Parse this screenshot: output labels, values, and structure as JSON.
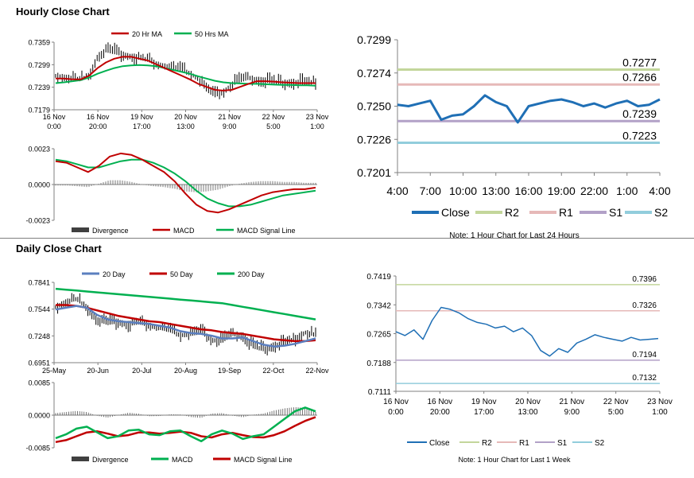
{
  "header_hourly": "Hourly Close Chart",
  "header_daily": "Daily Close Chart",
  "colors": {
    "close": "#1f6fb5",
    "ma_red": "#c00000",
    "ma_green": "#00b050",
    "r2": "#c3d69b",
    "r1": "#e6b9b8",
    "s1": "#b2a1c7",
    "s2": "#92cddc",
    "axis": "#808080",
    "bar": "#404040"
  },
  "chart_data": [
    {
      "id": "hourly_price",
      "type": "line",
      "title": "Hourly Close Chart",
      "y_ticks": [
        "0.7359",
        "0.7299",
        "0.7239",
        "0.7179"
      ],
      "ylim": [
        0.7179,
        0.7359
      ],
      "x_ticks": [
        "16 Nov\n0:00",
        "16 Nov\n20:00",
        "19 Nov\n17:00",
        "20 Nov\n13:00",
        "21 Nov\n9:00",
        "22 Nov\n5:00",
        "23 Nov\n1:00"
      ],
      "legend": [
        "20 Hr MA",
        "50 Hrs MA"
      ],
      "series": [
        {
          "name": "Close",
          "values": [
            0.7268,
            0.7265,
            0.7262,
            0.7258,
            0.727,
            0.732,
            0.7335,
            0.733,
            0.7325,
            0.732,
            0.7315,
            0.731,
            0.73,
            0.7295,
            0.729,
            0.7285,
            0.7275,
            0.726,
            0.723,
            0.7215,
            0.7225,
            0.7245,
            0.7255,
            0.7262,
            0.7258,
            0.7255,
            0.725,
            0.7248,
            0.7252,
            0.725,
            0.7248,
            0.7252
          ]
        },
        {
          "name": "20 Hr MA",
          "values": [
            0.7262,
            0.7262,
            0.726,
            0.726,
            0.727,
            0.729,
            0.7305,
            0.7315,
            0.732,
            0.732,
            0.7315,
            0.731,
            0.73,
            0.729,
            0.728,
            0.727,
            0.726,
            0.7248,
            0.724,
            0.7232,
            0.723,
            0.7232,
            0.724,
            0.7248,
            0.7255,
            0.7255,
            0.7254,
            0.7252,
            0.7251,
            0.725,
            0.725,
            0.725
          ]
        },
        {
          "name": "50 Hrs MA",
          "values": [
            0.725,
            0.7252,
            0.7255,
            0.7258,
            0.7265,
            0.7275,
            0.7283,
            0.729,
            0.7295,
            0.7297,
            0.7298,
            0.7297,
            0.7295,
            0.729,
            0.7285,
            0.728,
            0.7275,
            0.7268,
            0.7262,
            0.7256,
            0.7252,
            0.725,
            0.7249,
            0.7248,
            0.7248,
            0.7247,
            0.7246,
            0.7245,
            0.7245,
            0.7244,
            0.7244,
            0.7243
          ]
        }
      ]
    },
    {
      "id": "hourly_macd",
      "type": "line",
      "y_ticks": [
        "0.0023",
        "0.0000",
        "-0.0023"
      ],
      "ylim": [
        -0.0023,
        0.0023
      ],
      "legend": [
        "Divergence",
        "MACD",
        "MACD Signal Line"
      ],
      "series": [
        {
          "name": "MACD",
          "values": [
            0.0015,
            0.0014,
            0.0011,
            0.0008,
            0.0012,
            0.0018,
            0.002,
            0.0019,
            0.0016,
            0.0012,
            0.0008,
            0.0002,
            -0.0006,
            -0.0013,
            -0.0017,
            -0.0018,
            -0.0016,
            -0.0013,
            -0.001,
            -0.0007,
            -0.0005,
            -0.0004,
            -0.0003,
            -0.0003,
            -0.0002
          ]
        },
        {
          "name": "MACD Signal Line",
          "values": [
            0.0016,
            0.0015,
            0.0013,
            0.0011,
            0.0011,
            0.0013,
            0.0015,
            0.0016,
            0.0016,
            0.0014,
            0.0011,
            0.0007,
            0.0002,
            -0.0004,
            -0.0009,
            -0.0012,
            -0.0014,
            -0.0014,
            -0.0013,
            -0.0011,
            -0.0009,
            -0.0007,
            -0.0006,
            -0.0005,
            -0.0004
          ]
        }
      ]
    },
    {
      "id": "hourly24",
      "type": "line",
      "note": "Note: 1 Hour Chart for Last 24 Hours",
      "y_ticks": [
        "0.7299",
        "0.7274",
        "0.7250",
        "0.7226",
        "0.7201"
      ],
      "ylim": [
        0.7201,
        0.7299
      ],
      "x_ticks": [
        "4:00",
        "7:00",
        "10:00",
        "13:00",
        "16:00",
        "19:00",
        "22:00",
        "1:00",
        "4:00"
      ],
      "x": [
        0,
        1,
        2,
        3,
        4,
        5,
        6,
        7,
        8,
        9,
        10,
        11,
        12,
        13,
        14,
        15,
        16,
        17,
        18,
        19,
        20,
        21,
        22,
        23,
        24
      ],
      "legend": [
        "Close",
        "R2",
        "R1",
        "S1",
        "S2"
      ],
      "levels": [
        {
          "name": "R2",
          "value": 0.7277,
          "label": "0.7277"
        },
        {
          "name": "R1",
          "value": 0.7266,
          "label": "0.7266"
        },
        {
          "name": "S1",
          "value": 0.7239,
          "label": "0.7239"
        },
        {
          "name": "S2",
          "value": 0.7223,
          "label": "0.7223"
        }
      ],
      "series": [
        {
          "name": "Close",
          "values": [
            0.7251,
            0.725,
            0.7252,
            0.7254,
            0.724,
            0.7243,
            0.7244,
            0.725,
            0.7258,
            0.7253,
            0.725,
            0.7238,
            0.725,
            0.7252,
            0.7254,
            0.7255,
            0.7253,
            0.725,
            0.7252,
            0.7249,
            0.7252,
            0.7254,
            0.725,
            0.7251,
            0.7255
          ]
        }
      ]
    },
    {
      "id": "daily_price",
      "type": "line",
      "title": "Daily Close Chart",
      "y_ticks": [
        "0.7841",
        "0.7544",
        "0.7248",
        "0.6951"
      ],
      "ylim": [
        0.6951,
        0.7841
      ],
      "x_ticks": [
        "25-May",
        "20-Jun",
        "20-Jul",
        "20-Aug",
        "19-Sep",
        "22-Oct",
        "22-Nov"
      ],
      "legend": [
        "20 Day",
        "50 Day",
        "200 Day"
      ],
      "series": [
        {
          "name": "Close",
          "values": [
            0.756,
            0.762,
            0.765,
            0.756,
            0.742,
            0.738,
            0.74,
            0.737,
            0.739,
            0.736,
            0.733,
            0.73,
            0.725,
            0.726,
            0.728,
            0.72,
            0.718,
            0.726,
            0.725,
            0.712,
            0.709,
            0.714,
            0.715,
            0.721,
            0.728,
            0.725
          ]
        },
        {
          "name": "20 Day",
          "values": [
            0.754,
            0.756,
            0.758,
            0.756,
            0.748,
            0.743,
            0.741,
            0.74,
            0.739,
            0.738,
            0.736,
            0.734,
            0.73,
            0.728,
            0.727,
            0.725,
            0.722,
            0.722,
            0.723,
            0.719,
            0.715,
            0.713,
            0.714,
            0.716,
            0.719,
            0.722
          ]
        },
        {
          "name": "50 Day",
          "values": [
            0.759,
            0.759,
            0.758,
            0.756,
            0.753,
            0.75,
            0.747,
            0.745,
            0.743,
            0.741,
            0.74,
            0.738,
            0.736,
            0.734,
            0.732,
            0.731,
            0.729,
            0.728,
            0.727,
            0.725,
            0.723,
            0.721,
            0.72,
            0.719,
            0.719,
            0.72
          ]
        },
        {
          "name": "200 Day",
          "values": [
            0.777,
            0.776,
            0.775,
            0.774,
            0.773,
            0.772,
            0.771,
            0.77,
            0.769,
            0.768,
            0.767,
            0.766,
            0.765,
            0.764,
            0.763,
            0.762,
            0.761,
            0.759,
            0.757,
            0.755,
            0.753,
            0.751,
            0.749,
            0.747,
            0.745,
            0.743
          ]
        }
      ]
    },
    {
      "id": "daily_macd",
      "type": "line",
      "y_ticks": [
        "0.0085",
        "0.0000",
        "-0.0085"
      ],
      "ylim": [
        -0.0085,
        0.0085
      ],
      "legend": [
        "Divergence",
        "MACD",
        "MACD Signal Line"
      ],
      "series": [
        {
          "name": "MACD",
          "values": [
            -0.006,
            -0.005,
            -0.0035,
            -0.003,
            -0.0045,
            -0.006,
            -0.0055,
            -0.004,
            -0.0038,
            -0.005,
            -0.0052,
            -0.0042,
            -0.004,
            -0.0055,
            -0.0068,
            -0.005,
            -0.004,
            -0.0048,
            -0.0062,
            -0.0055,
            -0.005,
            -0.003,
            -0.001,
            0.001,
            0.002,
            0.001
          ]
        },
        {
          "name": "MACD Signal Line",
          "values": [
            -0.007,
            -0.0065,
            -0.0055,
            -0.0045,
            -0.0042,
            -0.0048,
            -0.0055,
            -0.0052,
            -0.0045,
            -0.0045,
            -0.0048,
            -0.0046,
            -0.0043,
            -0.0046,
            -0.0055,
            -0.0058,
            -0.005,
            -0.0046,
            -0.0052,
            -0.0057,
            -0.0058,
            -0.0052,
            -0.0042,
            -0.0028,
            -0.0015,
            -0.0005
          ]
        }
      ]
    },
    {
      "id": "weekly",
      "type": "line",
      "note": "Note: 1 Hour Chart for Last 1 Week",
      "y_ticks": [
        "0.7419",
        "0.7342",
        "0.7265",
        "0.7188",
        "0.7111"
      ],
      "ylim": [
        0.7111,
        0.7419
      ],
      "x_ticks": [
        "16 Nov\n0:00",
        "16 Nov\n20:00",
        "19 Nov\n17:00",
        "20 Nov\n13:00",
        "21 Nov\n9:00",
        "22 Nov\n5:00",
        "23 Nov\n1:00"
      ],
      "legend": [
        "Close",
        "R2",
        "R1",
        "S1",
        "S2"
      ],
      "levels": [
        {
          "name": "R2",
          "value": 0.7396,
          "label": "0.7396"
        },
        {
          "name": "R1",
          "value": 0.7326,
          "label": "0.7326"
        },
        {
          "name": "S1",
          "value": 0.7194,
          "label": "0.7194"
        },
        {
          "name": "S2",
          "value": 0.7132,
          "label": "0.7132"
        }
      ],
      "series": [
        {
          "name": "Close",
          "values": [
            0.727,
            0.726,
            0.7275,
            0.725,
            0.73,
            0.7335,
            0.733,
            0.732,
            0.7305,
            0.7295,
            0.729,
            0.728,
            0.7285,
            0.727,
            0.728,
            0.726,
            0.722,
            0.7205,
            0.7225,
            0.7215,
            0.724,
            0.725,
            0.7262,
            0.7255,
            0.725,
            0.7245,
            0.7255,
            0.7248,
            0.725,
            0.7252
          ]
        }
      ]
    }
  ]
}
